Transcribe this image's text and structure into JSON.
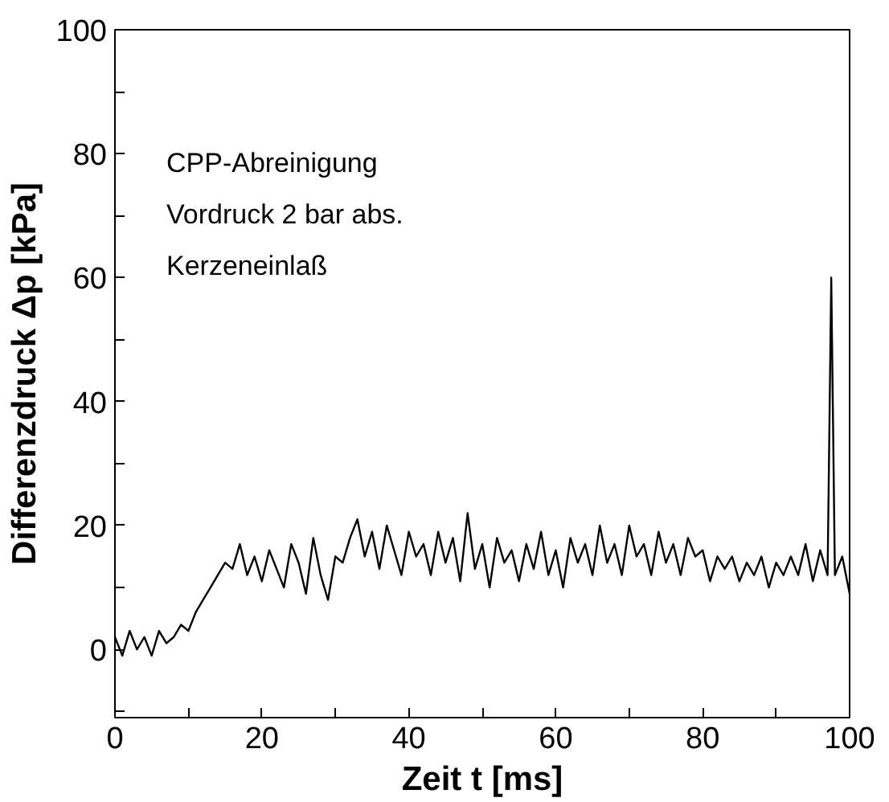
{
  "chart_data": {
    "type": "line",
    "xlabel": "Zeit t [ms]",
    "ylabel": "Differenzdruck Δp [kPa]",
    "annotations": [
      "CPP-Abreinigung",
      "Vordruck 2 bar abs.",
      "Kerzeneinlaß"
    ],
    "xlim": [
      0,
      100
    ],
    "ylim": [
      -11,
      100
    ],
    "xticks": [
      0,
      {
        "value": 10,
        "label": null
      },
      20,
      {
        "value": 30,
        "label": null
      },
      40,
      {
        "value": 50,
        "label": null
      },
      60,
      {
        "value": 70,
        "label": null
      },
      80,
      {
        "value": 90,
        "label": null
      },
      100
    ],
    "yticks": [
      {
        "value": -10,
        "label": null
      },
      0,
      {
        "value": 10,
        "label": null
      },
      20,
      {
        "value": 30,
        "label": null
      },
      40,
      {
        "value": 50,
        "label": null
      },
      60,
      {
        "value": 70,
        "label": null
      },
      80,
      {
        "value": 90,
        "label": null
      },
      100
    ],
    "grid": false,
    "series": [
      {
        "color": "#000000",
        "x": [
          0,
          1,
          2,
          3,
          4,
          5,
          6,
          7,
          8,
          9,
          10,
          11,
          12,
          13,
          14,
          15,
          16,
          17,
          18,
          19,
          20,
          21,
          22,
          23,
          24,
          25,
          26,
          27,
          28,
          29,
          30,
          31,
          32,
          33,
          34,
          35,
          36,
          37,
          38,
          39,
          40,
          41,
          42,
          43,
          44,
          45,
          46,
          47,
          48,
          49,
          50,
          51,
          52,
          53,
          54,
          55,
          56,
          57,
          58,
          59,
          60,
          61,
          62,
          63,
          64,
          65,
          66,
          67,
          68,
          69,
          70,
          71,
          72,
          73,
          74,
          75,
          76,
          77,
          78,
          79,
          80,
          81,
          82,
          83,
          84,
          85,
          86,
          87,
          88,
          89,
          90,
          91,
          92,
          93,
          94,
          95,
          96,
          97,
          97.5,
          98,
          99,
          100
        ],
        "values": [
          2,
          -1,
          3,
          0,
          2,
          -1,
          3,
          1,
          2,
          4,
          3,
          6,
          8,
          10,
          12,
          14,
          13,
          17,
          12,
          15,
          11,
          16,
          13,
          10,
          17,
          14,
          9,
          18,
          12,
          8,
          15,
          14,
          18,
          21,
          15,
          19,
          13,
          20,
          16,
          12,
          19,
          15,
          17,
          12,
          19,
          14,
          18,
          11,
          22,
          13,
          17,
          10,
          18,
          14,
          16,
          11,
          17,
          13,
          19,
          12,
          16,
          10,
          18,
          14,
          17,
          12,
          20,
          14,
          17,
          12,
          20,
          15,
          17,
          12,
          19,
          14,
          17,
          12,
          18,
          15,
          16,
          11,
          15,
          13,
          15,
          11,
          14,
          12,
          15,
          10,
          14,
          12,
          15,
          12,
          17,
          11,
          16,
          12,
          60,
          12,
          15,
          9
        ]
      }
    ]
  }
}
